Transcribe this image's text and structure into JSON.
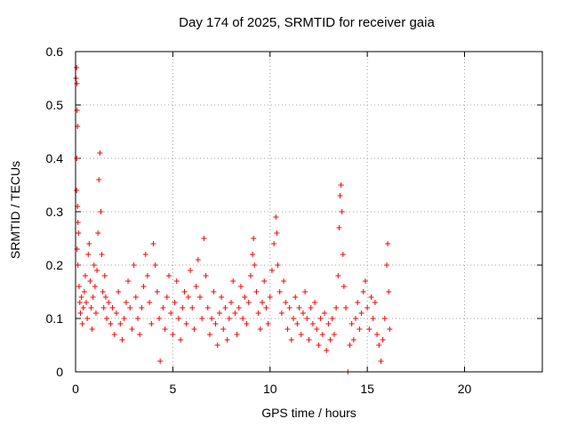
{
  "chart_data": {
    "type": "scatter",
    "title": "Day 174 of 2025, SRMTID for receiver gaia",
    "xlabel": "GPS time / hours",
    "ylabel": "SRMTID / TECUs",
    "xlim": [
      0,
      24
    ],
    "ylim": [
      0,
      0.6
    ],
    "xticks": [
      0,
      5,
      10,
      15,
      20
    ],
    "yticks": [
      0,
      0.1,
      0.2,
      0.3,
      0.4,
      0.5,
      0.6
    ],
    "xtick_labels": [
      "0",
      "5",
      "10",
      "15",
      "20"
    ],
    "ytick_labels": [
      "0",
      "0.1",
      "0.2",
      "0.3",
      "0.4",
      "0.5",
      "0.6"
    ],
    "grid": true,
    "marker": "+",
    "color": "#ff0000",
    "series": [
      {
        "name": "SRMTID",
        "points": [
          [
            0.02,
            0.55
          ],
          [
            0.05,
            0.57
          ],
          [
            0.07,
            0.54
          ],
          [
            0.08,
            0.49
          ],
          [
            0.1,
            0.46
          ],
          [
            0.06,
            0.4
          ],
          [
            0.05,
            0.34
          ],
          [
            0.1,
            0.31
          ],
          [
            0.12,
            0.28
          ],
          [
            0.15,
            0.26
          ],
          [
            0.08,
            0.23
          ],
          [
            0.12,
            0.2
          ],
          [
            0.18,
            0.16
          ],
          [
            0.22,
            0.13
          ],
          [
            0.25,
            0.11
          ],
          [
            0.3,
            0.14
          ],
          [
            0.35,
            0.09
          ],
          [
            0.4,
            0.12
          ],
          [
            0.45,
            0.15
          ],
          [
            0.5,
            0.18
          ],
          [
            0.55,
            0.13
          ],
          [
            0.6,
            0.1
          ],
          [
            0.65,
            0.22
          ],
          [
            0.7,
            0.24
          ],
          [
            0.75,
            0.17
          ],
          [
            0.8,
            0.12
          ],
          [
            0.85,
            0.08
          ],
          [
            0.9,
            0.14
          ],
          [
            0.95,
            0.2
          ],
          [
            1.0,
            0.16
          ],
          [
            1.05,
            0.11
          ],
          [
            1.1,
            0.19
          ],
          [
            1.15,
            0.26
          ],
          [
            1.2,
            0.36
          ],
          [
            1.25,
            0.41
          ],
          [
            1.3,
            0.3
          ],
          [
            1.35,
            0.22
          ],
          [
            1.4,
            0.15
          ],
          [
            1.45,
            0.12
          ],
          [
            1.5,
            0.18
          ],
          [
            1.55,
            0.14
          ],
          [
            1.6,
            0.1
          ],
          [
            1.7,
            0.13
          ],
          [
            1.8,
            0.09
          ],
          [
            1.9,
            0.12
          ],
          [
            2.0,
            0.07
          ],
          [
            2.1,
            0.11
          ],
          [
            2.2,
            0.15
          ],
          [
            2.3,
            0.09
          ],
          [
            2.4,
            0.06
          ],
          [
            2.5,
            0.1
          ],
          [
            2.6,
            0.13
          ],
          [
            2.7,
            0.17
          ],
          [
            2.8,
            0.12
          ],
          [
            2.9,
            0.08
          ],
          [
            3.0,
            0.2
          ],
          [
            3.1,
            0.14
          ],
          [
            3.2,
            0.1
          ],
          [
            3.3,
            0.07
          ],
          [
            3.4,
            0.12
          ],
          [
            3.5,
            0.16
          ],
          [
            3.6,
            0.22
          ],
          [
            3.7,
            0.18
          ],
          [
            3.8,
            0.13
          ],
          [
            3.9,
            0.09
          ],
          [
            4.0,
            0.24
          ],
          [
            4.1,
            0.2
          ],
          [
            4.2,
            0.15
          ],
          [
            4.3,
            0.1
          ],
          [
            4.35,
            0.02
          ],
          [
            4.5,
            0.12
          ],
          [
            4.6,
            0.08
          ],
          [
            4.7,
            0.14
          ],
          [
            4.8,
            0.18
          ],
          [
            4.9,
            0.11
          ],
          [
            5.0,
            0.07
          ],
          [
            5.1,
            0.13
          ],
          [
            5.2,
            0.17
          ],
          [
            5.3,
            0.1
          ],
          [
            5.4,
            0.06
          ],
          [
            5.5,
            0.12
          ],
          [
            5.6,
            0.15
          ],
          [
            5.7,
            0.09
          ],
          [
            5.8,
            0.14
          ],
          [
            5.9,
            0.19
          ],
          [
            6.0,
            0.12
          ],
          [
            6.1,
            0.08
          ],
          [
            6.2,
            0.16
          ],
          [
            6.3,
            0.21
          ],
          [
            6.4,
            0.14
          ],
          [
            6.5,
            0.1
          ],
          [
            6.6,
            0.25
          ],
          [
            6.7,
            0.18
          ],
          [
            6.8,
            0.12
          ],
          [
            6.9,
            0.07
          ],
          [
            7.0,
            0.1
          ],
          [
            7.1,
            0.15
          ],
          [
            7.2,
            0.09
          ],
          [
            7.3,
            0.05
          ],
          [
            7.4,
            0.11
          ],
          [
            7.5,
            0.14
          ],
          [
            7.6,
            0.08
          ],
          [
            7.7,
            0.12
          ],
          [
            7.8,
            0.06
          ],
          [
            7.9,
            0.1
          ],
          [
            8.0,
            0.13
          ],
          [
            8.1,
            0.17
          ],
          [
            8.2,
            0.11
          ],
          [
            8.3,
            0.07
          ],
          [
            8.4,
            0.12
          ],
          [
            8.5,
            0.16
          ],
          [
            8.6,
            0.1
          ],
          [
            8.7,
            0.14
          ],
          [
            8.8,
            0.09
          ],
          [
            8.9,
            0.13
          ],
          [
            9.0,
            0.18
          ],
          [
            9.1,
            0.22
          ],
          [
            9.15,
            0.25
          ],
          [
            9.2,
            0.2
          ],
          [
            9.3,
            0.15
          ],
          [
            9.4,
            0.11
          ],
          [
            9.5,
            0.08
          ],
          [
            9.6,
            0.13
          ],
          [
            9.7,
            0.17
          ],
          [
            9.8,
            0.12
          ],
          [
            9.9,
            0.09
          ],
          [
            10.0,
            0.14
          ],
          [
            10.1,
            0.19
          ],
          [
            10.2,
            0.24
          ],
          [
            10.3,
            0.29
          ],
          [
            10.35,
            0.26
          ],
          [
            10.4,
            0.2
          ],
          [
            10.5,
            0.15
          ],
          [
            10.6,
            0.11
          ],
          [
            10.7,
            0.17
          ],
          [
            10.8,
            0.13
          ],
          [
            10.9,
            0.08
          ],
          [
            11.0,
            0.12
          ],
          [
            11.1,
            0.06
          ],
          [
            11.2,
            0.1
          ],
          [
            11.3,
            0.14
          ],
          [
            11.4,
            0.09
          ],
          [
            11.5,
            0.12
          ],
          [
            11.6,
            0.07
          ],
          [
            11.7,
            0.11
          ],
          [
            11.8,
            0.15
          ],
          [
            11.9,
            0.1
          ],
          [
            12.0,
            0.06
          ],
          [
            12.1,
            0.12
          ],
          [
            12.2,
            0.09
          ],
          [
            12.3,
            0.13
          ],
          [
            12.4,
            0.08
          ],
          [
            12.5,
            0.05
          ],
          [
            12.6,
            0.1
          ],
          [
            12.7,
            0.07
          ],
          [
            12.8,
            0.11
          ],
          [
            12.9,
            0.04
          ],
          [
            13.0,
            0.09
          ],
          [
            13.1,
            0.06
          ],
          [
            13.2,
            0.1
          ],
          [
            13.3,
            0.07
          ],
          [
            13.4,
            0.12
          ],
          [
            13.5,
            0.18
          ],
          [
            13.55,
            0.27
          ],
          [
            13.6,
            0.33
          ],
          [
            13.65,
            0.35
          ],
          [
            13.7,
            0.3
          ],
          [
            13.75,
            0.22
          ],
          [
            13.8,
            0.16
          ],
          [
            13.9,
            0.12
          ],
          [
            14.0,
            0.0
          ],
          [
            14.1,
            0.05
          ],
          [
            14.2,
            0.09
          ],
          [
            14.3,
            0.06
          ],
          [
            14.4,
            0.1
          ],
          [
            14.5,
            0.13
          ],
          [
            14.6,
            0.08
          ],
          [
            14.7,
            0.11
          ],
          [
            14.8,
            0.15
          ],
          [
            14.9,
            0.17
          ],
          [
            15.0,
            0.12
          ],
          [
            15.1,
            0.08
          ],
          [
            15.2,
            0.14
          ],
          [
            15.3,
            0.1
          ],
          [
            15.4,
            0.13
          ],
          [
            15.5,
            0.07
          ],
          [
            15.6,
            0.05
          ],
          [
            15.7,
            0.02
          ],
          [
            15.8,
            0.06
          ],
          [
            15.9,
            0.1
          ],
          [
            16.0,
            0.2
          ],
          [
            16.05,
            0.24
          ],
          [
            16.1,
            0.15
          ],
          [
            16.15,
            0.08
          ]
        ]
      }
    ]
  }
}
